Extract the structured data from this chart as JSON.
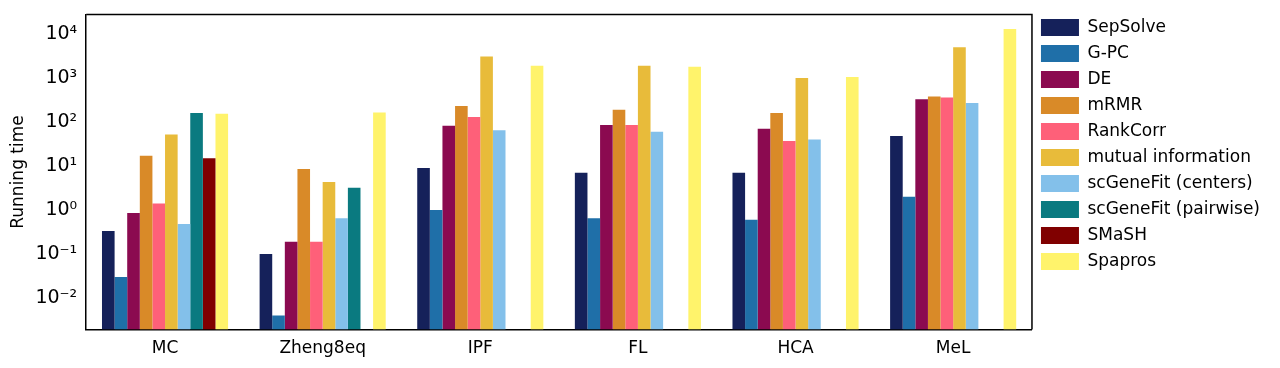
{
  "chart_data": {
    "type": "bar",
    "ylabel": "Running time",
    "log": "y",
    "grid": false,
    "legend": "right",
    "categories": [
      "MC",
      "Zheng8eq",
      "IPF",
      "FL",
      "HCA",
      "MeL"
    ],
    "ylim": [
      0.0019,
      28000
    ],
    "yticks": [
      {
        "value": 0.01,
        "label": "10⁻²"
      },
      {
        "value": 0.1,
        "label": "10⁻¹"
      },
      {
        "value": 1,
        "label": "10⁰"
      },
      {
        "value": 10,
        "label": "10¹"
      },
      {
        "value": 100,
        "label": "10²"
      },
      {
        "value": 1000,
        "label": "10³"
      },
      {
        "value": 10000,
        "label": "10⁴"
      }
    ],
    "series": [
      {
        "name": "SepSolve",
        "color": "#15215a",
        "values": [
          0.33,
          0.1,
          9,
          7,
          7,
          48
        ]
      },
      {
        "name": "G-PC",
        "color": "#1f6fa8",
        "values": [
          0.03,
          0.004,
          1.0,
          0.65,
          0.6,
          2
        ]
      },
      {
        "name": "DE",
        "color": "#8b0a50",
        "values": [
          0.85,
          0.19,
          82,
          85,
          70,
          330
        ]
      },
      {
        "name": "mRMR",
        "color": "#d98a28",
        "values": [
          17,
          8.5,
          230,
          190,
          160,
          380
        ]
      },
      {
        "name": "RankCorr",
        "color": "#fe6079",
        "values": [
          1.4,
          0.19,
          130,
          85,
          37,
          360
        ]
      },
      {
        "name": "mutual information",
        "color": "#e8bb3a",
        "values": [
          52,
          4.3,
          3100,
          1900,
          1000,
          5000
        ]
      },
      {
        "name": "scGeneFit (centers)",
        "color": "#83c0ea",
        "values": [
          0.48,
          0.65,
          65,
          60,
          40,
          270
        ]
      },
      {
        "name": "scGeneFit (pairwise)",
        "color": "#0a7a80",
        "values": [
          160,
          3.2,
          null,
          null,
          null,
          null
        ]
      },
      {
        "name": "SMaSH",
        "color": "#800000",
        "values": [
          15,
          null,
          null,
          null,
          null,
          null
        ]
      },
      {
        "name": "Spapros",
        "color": "#fff36b",
        "values": [
          155,
          165,
          1900,
          1800,
          1050,
          13000
        ]
      }
    ]
  }
}
